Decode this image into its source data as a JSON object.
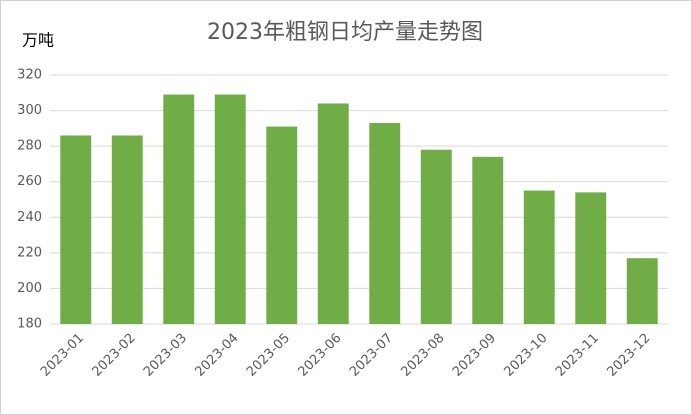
{
  "chart_data": {
    "type": "bar",
    "title": "2023年粗钢日均产量走势图",
    "y_label": "万吨",
    "categories": [
      "2023-01",
      "2023-02",
      "2023-03",
      "2023-04",
      "2023-05",
      "2023-06",
      "2023-07",
      "2023-08",
      "2023-09",
      "2023-10",
      "2023-11",
      "2023-12"
    ],
    "values": [
      286,
      286,
      309,
      309,
      291,
      304,
      293,
      278,
      274,
      255,
      254,
      217
    ],
    "color": "#70ad47",
    "ylim": [
      180,
      320
    ],
    "yticks": [
      180,
      200,
      220,
      240,
      260,
      280,
      300,
      320
    ],
    "grid": true
  }
}
